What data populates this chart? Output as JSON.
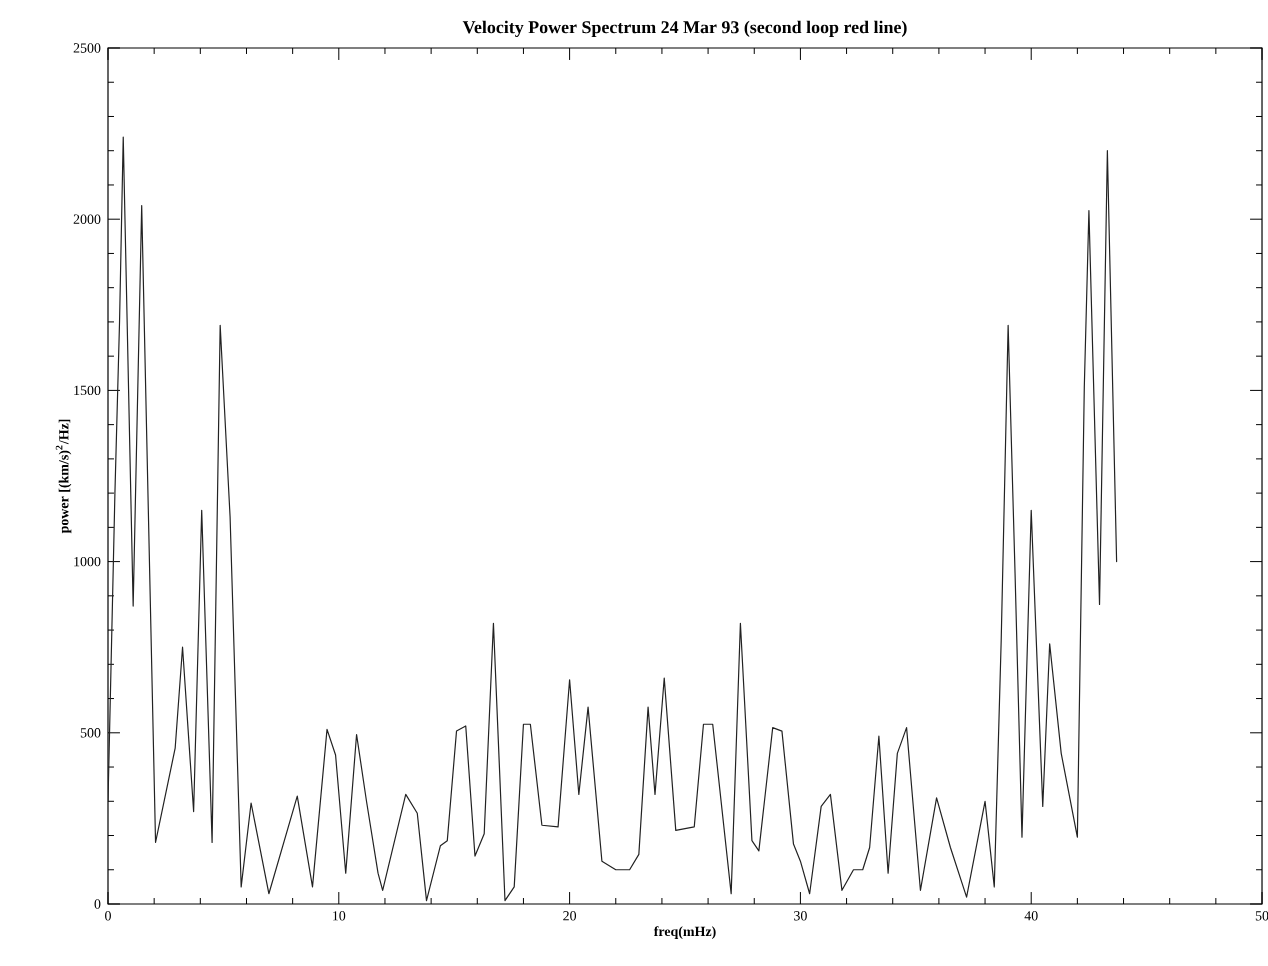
{
  "chart_data": {
    "type": "line",
    "title": "Velocity Power Spectrum 24 Mar 93 (second loop red line)",
    "xlabel": "freq(mHz)",
    "ylabel": "power [(km/s)$^{2}$/Hz]",
    "xlim": [
      0,
      50
    ],
    "ylim": [
      0,
      2500
    ],
    "xticks": [
      0,
      10,
      20,
      30,
      40,
      50
    ],
    "yticks": [
      0,
      500,
      1000,
      1500,
      2000,
      2500
    ],
    "grid": false,
    "marker": "none",
    "line_style": "solid",
    "series": [
      {
        "color": "#222222",
        "x": [
          0,
          0.3,
          0.5,
          0.66,
          1.09,
          1.46,
          2.06,
          2.91,
          3.23,
          3.71,
          4.06,
          4.51,
          4.86,
          5.29,
          5.77,
          6.2,
          6.97,
          8.2,
          8.86,
          9.49,
          9.86,
          10.3,
          10.77,
          11.2,
          11.7,
          11.9,
          12.9,
          13.4,
          13.8,
          14.4,
          14.7,
          15.1,
          15.5,
          15.9,
          16.3,
          16.7,
          17.2,
          17.6,
          18.0,
          18.3,
          18.8,
          19.5,
          20.0,
          20.4,
          20.8,
          21.4,
          22.0,
          22.6,
          23.0,
          23.4,
          23.7,
          24.1,
          24.6,
          25.4,
          25.8,
          26.2,
          27.0,
          27.4,
          27.9,
          28.2,
          28.8,
          29.2,
          29.7,
          30.0,
          30.4,
          30.9,
          31.3,
          31.8,
          32.3,
          32.7,
          33.0,
          33.4,
          33.8,
          34.2,
          34.6,
          35.2,
          35.9,
          36.5,
          37.2,
          38.0,
          38.4,
          38.7,
          39.0,
          39.3,
          39.6,
          40.0,
          40.5,
          40.8,
          41.3,
          42.0,
          42.3,
          42.5,
          42.96,
          43.3,
          43.7
        ],
        "values": [
          300,
          1200,
          1700,
          2240,
          870,
          2040,
          180,
          455,
          750,
          270,
          1150,
          180,
          1690,
          1130,
          50,
          295,
          30,
          315,
          50,
          510,
          435,
          90,
          495,
          300,
          90,
          40,
          320,
          265,
          10,
          170,
          185,
          505,
          520,
          140,
          205,
          820,
          10,
          50,
          525,
          525,
          230,
          225,
          655,
          320,
          575,
          125,
          100,
          100,
          145,
          575,
          320,
          660,
          215,
          225,
          525,
          525,
          30,
          820,
          185,
          155,
          515,
          505,
          175,
          125,
          30,
          285,
          320,
          40,
          100,
          100,
          165,
          490,
          90,
          440,
          515,
          40,
          310,
          165,
          20,
          300,
          50,
          770,
          1690,
          965,
          195,
          1150,
          285,
          760,
          440,
          195,
          1510,
          2025,
          875,
          2200,
          1000
        ]
      }
    ]
  }
}
